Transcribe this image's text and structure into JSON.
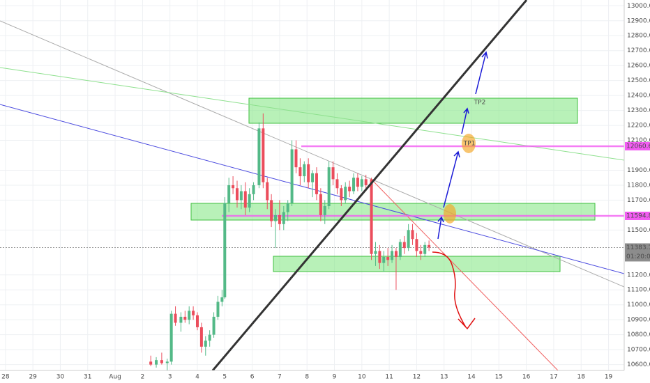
{
  "chart_data": {
    "type": "candlestick",
    "up_color": "#53b987",
    "down_color": "#eb4d5c",
    "x": [
      2.3,
      2.5,
      2.7,
      2.9,
      3.05,
      3.2,
      3.4,
      3.55,
      3.7,
      3.85,
      4.0,
      4.15,
      4.3,
      4.45,
      4.6,
      4.75,
      4.9,
      5.0,
      5.15,
      5.3,
      5.45,
      5.6,
      5.75,
      5.9,
      6.05,
      6.25,
      6.4,
      6.55,
      6.7,
      6.85,
      7.0,
      7.15,
      7.3,
      7.45,
      7.6,
      7.75,
      7.9,
      8.05,
      8.2,
      8.35,
      8.5,
      8.65,
      8.8,
      8.95,
      9.1,
      9.25,
      9.4,
      9.55,
      9.7,
      9.85,
      10.0,
      10.15,
      10.35,
      10.5,
      10.65,
      10.8,
      10.95,
      11.1,
      11.25,
      11.4,
      11.55,
      11.7,
      11.85,
      12.0,
      12.15,
      12.3,
      12.45
    ],
    "open": [
      10620,
      10600,
      10630,
      10610,
      10620,
      10940,
      10880,
      10920,
      10900,
      10960,
      10930,
      10850,
      10720,
      10760,
      10800,
      10920,
      11020,
      11050,
      11680,
      11800,
      11780,
      11700,
      11760,
      11650,
      11740,
      11800,
      12180,
      11820,
      11700,
      11560,
      11600,
      11540,
      11620,
      11680,
      12040,
      11920,
      11860,
      11940,
      11820,
      11880,
      11740,
      11600,
      11660,
      11920,
      11840,
      11780,
      11700,
      11790,
      11760,
      11850,
      11790,
      11840,
      11840,
      11340,
      11360,
      11280,
      11320,
      11300,
      11360,
      11320,
      11420,
      11380,
      11500,
      11440,
      11360,
      11340,
      11400
    ],
    "high": [
      10660,
      10650,
      10680,
      10640,
      10960,
      10990,
      10950,
      10960,
      10990,
      10990,
      10950,
      10880,
      10790,
      10830,
      10950,
      11060,
      11100,
      11720,
      11850,
      11860,
      11830,
      11800,
      11820,
      11780,
      11820,
      12220,
      12280,
      11850,
      11740,
      11640,
      11700,
      11660,
      11700,
      12100,
      12100,
      11980,
      11960,
      11980,
      11900,
      11920,
      11780,
      11700,
      11960,
      11960,
      11880,
      11800,
      11820,
      11830,
      11880,
      11880,
      11860,
      11870,
      11850,
      11420,
      11400,
      11360,
      11380,
      11400,
      11380,
      11440,
      11460,
      11540,
      11540,
      11480,
      11400,
      11420,
      11430
    ],
    "low": [
      10590,
      10580,
      10600,
      10560,
      10600,
      10860,
      10820,
      10880,
      10870,
      10900,
      10830,
      10680,
      10660,
      10720,
      10780,
      10900,
      10990,
      11040,
      11620,
      11740,
      11650,
      11640,
      11600,
      11620,
      11700,
      11780,
      11780,
      11640,
      11520,
      11380,
      11500,
      11500,
      11560,
      11660,
      11880,
      11800,
      11820,
      11780,
      11720,
      11700,
      11560,
      11540,
      11640,
      11800,
      11740,
      11660,
      11680,
      11720,
      11740,
      11760,
      11760,
      11760,
      11300,
      11260,
      11240,
      11220,
      11260,
      11280,
      11100,
      11300,
      11340,
      11360,
      11400,
      11320,
      11300,
      11320,
      11360
    ],
    "close": [
      10600,
      10630,
      10610,
      10620,
      10940,
      10880,
      10920,
      10900,
      10960,
      10930,
      10850,
      10720,
      10760,
      10800,
      10920,
      11020,
      11050,
      11680,
      11800,
      11780,
      11700,
      11760,
      11650,
      11740,
      11800,
      12180,
      11820,
      11700,
      11560,
      11600,
      11540,
      11620,
      11680,
      12040,
      11920,
      11860,
      11940,
      11820,
      11880,
      11740,
      11600,
      11660,
      11920,
      11840,
      11780,
      11700,
      11790,
      11760,
      11850,
      11790,
      11840,
      11800,
      11340,
      11360,
      11280,
      11320,
      11300,
      11360,
      11320,
      11420,
      11380,
      11500,
      11440,
      11360,
      11340,
      11400,
      11383.13
    ],
    "xlim": [
      -3.2,
      19.52
    ],
    "ylim": [
      10477,
      13038.7
    ],
    "xticks": [
      {
        "value": -3,
        "label": "28"
      },
      {
        "value": -2,
        "label": "29"
      },
      {
        "value": -1,
        "label": "30"
      },
      {
        "value": 0,
        "label": "31"
      },
      {
        "value": 1,
        "label": "Aug"
      },
      2,
      3,
      4,
      5,
      6,
      7,
      8,
      9,
      10,
      11,
      12,
      13,
      14,
      15,
      16,
      17,
      18,
      19
    ],
    "yticks": [
      {
        "value": 10600,
        "label": "10600.00"
      },
      {
        "value": 10700,
        "label": "10700.00"
      },
      {
        "value": 10800,
        "label": "10800.00"
      },
      {
        "value": 10900,
        "label": "10900.00"
      },
      {
        "value": 11000,
        "label": "11000.00"
      },
      {
        "value": 11100,
        "label": "11100.00"
      },
      {
        "value": 11200,
        "label": "11200.00"
      },
      {
        "value": 11500,
        "label": "11500.00"
      },
      {
        "value": 11700,
        "label": "11700.00"
      },
      {
        "value": 11800,
        "label": "11800.00"
      },
      {
        "value": 11900,
        "label": "11900.00"
      },
      {
        "value": 12100,
        "label": "12100.00"
      },
      {
        "value": 12200,
        "label": "12200.00"
      },
      {
        "value": 12300,
        "label": "12300.00"
      },
      {
        "value": 12400,
        "label": "12400.00"
      },
      {
        "value": 12500,
        "label": "12500.00"
      },
      {
        "value": 12600,
        "label": "12600.00"
      },
      {
        "value": 12700,
        "label": "12700.00"
      },
      {
        "value": 12800,
        "label": "12800.00"
      },
      {
        "value": 12900,
        "label": "12900.00"
      },
      {
        "value": 13000,
        "label": "13000.00"
      }
    ],
    "grid": true,
    "levels": [
      {
        "value": 12060.61,
        "color": "#f25cf2"
      },
      {
        "value": 11594.85,
        "color": "#f25cf2"
      }
    ],
    "last_price": 11383.13,
    "countdown": "01:20:00",
    "annotations": [
      "TP1",
      "TP2"
    ]
  }
}
